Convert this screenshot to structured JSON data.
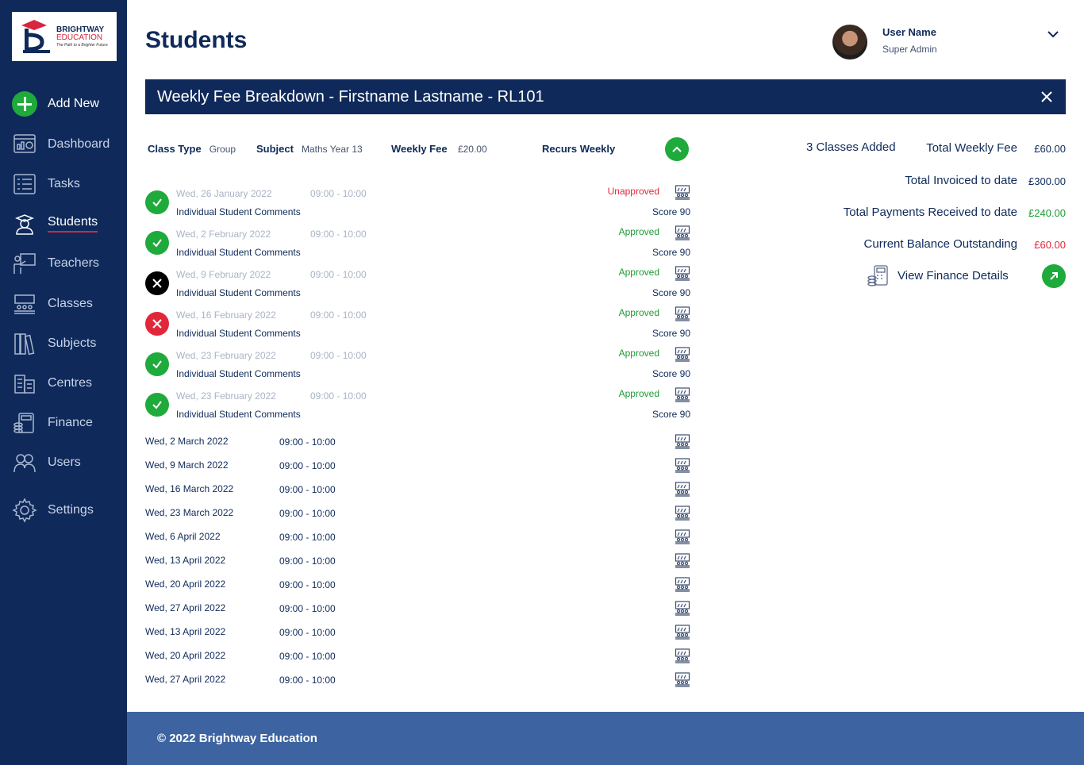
{
  "brand": {
    "line1": "BRIGHTWAY",
    "line2": "EDUCATION",
    "tagline": "The Path to a Brighter Future"
  },
  "sidebar": {
    "add_new": "Add New",
    "items": [
      {
        "label": "Dashboard",
        "icon": "dashboard-icon"
      },
      {
        "label": "Tasks",
        "icon": "tasks-icon"
      },
      {
        "label": "Students",
        "icon": "students-icon"
      },
      {
        "label": "Teachers",
        "icon": "teachers-icon"
      },
      {
        "label": "Classes",
        "icon": "classes-icon"
      },
      {
        "label": "Subjects",
        "icon": "subjects-icon"
      },
      {
        "label": "Centres",
        "icon": "centres-icon"
      },
      {
        "label": "Finance",
        "icon": "finance-icon"
      },
      {
        "label": "Users",
        "icon": "users-icon"
      },
      {
        "label": "Settings",
        "icon": "settings-icon"
      }
    ],
    "active": "Students"
  },
  "header": {
    "title": "Students",
    "user_name": "User Name",
    "user_role": "Super Admin"
  },
  "modal": {
    "title": "Weekly Fee Breakdown - Firstname Lastname - RL101"
  },
  "class_info": {
    "class_type_label": "Class Type",
    "class_type_value": "Group",
    "subject_label": "Subject",
    "subject_value": "Maths Year 13",
    "weekly_fee_label": "Weekly Fee",
    "weekly_fee_value": "£20.00",
    "recurs_label": "Recurs Weekly"
  },
  "past_sessions": [
    {
      "date": "Wed, 26 January 2022",
      "time": "09:00 - 10:00",
      "comment": "Individual Student Comments",
      "state": "ok",
      "status": "Unapproved",
      "status_type": "un",
      "score": "Score 90"
    },
    {
      "date": "Wed, 2 February 2022",
      "time": "09:00 - 10:00",
      "comment": "Individual Student Comments",
      "state": "ok",
      "status": "Approved",
      "status_type": "ap",
      "score": "Score 90"
    },
    {
      "date": "Wed, 9 February 2022",
      "time": "09:00 - 10:00",
      "comment": "Individual Student Comments",
      "state": "x",
      "status": "Approved",
      "status_type": "ap",
      "score": "Score 90"
    },
    {
      "date": "Wed, 16 February 2022",
      "time": "09:00 - 10:00",
      "comment": "Individual Student Comments",
      "state": "red",
      "status": "Approved",
      "status_type": "ap",
      "score": "Score 90"
    },
    {
      "date": "Wed, 23 February 2022",
      "time": "09:00 - 10:00",
      "comment": "Individual Student Comments",
      "state": "ok",
      "status": "Approved",
      "status_type": "ap",
      "score": "Score 90"
    },
    {
      "date": "Wed, 23 February 2022",
      "time": "09:00 - 10:00",
      "comment": "Individual Student Comments",
      "state": "ok",
      "status": "Approved",
      "status_type": "ap",
      "score": "Score 90"
    }
  ],
  "upcoming_sessions": [
    {
      "date": "Wed, 2 March 2022",
      "time": "09:00 - 10:00"
    },
    {
      "date": "Wed, 9 March 2022",
      "time": "09:00 - 10:00"
    },
    {
      "date": "Wed, 16 March 2022",
      "time": "09:00 - 10:00"
    },
    {
      "date": "Wed, 23 March 2022",
      "time": "09:00 - 10:00"
    },
    {
      "date": "Wed, 6 April 2022",
      "time": "09:00 - 10:00"
    },
    {
      "date": "Wed, 13 April 2022",
      "time": "09:00 - 10:00"
    },
    {
      "date": "Wed, 20 April 2022",
      "time": "09:00 - 10:00"
    },
    {
      "date": "Wed, 27 April 2022",
      "time": "09:00 - 10:00"
    },
    {
      "date": "Wed, 13 April 2022",
      "time": "09:00 - 10:00"
    },
    {
      "date": "Wed, 20 April 2022",
      "time": "09:00 - 10:00"
    },
    {
      "date": "Wed, 27 April 2022",
      "time": "09:00 - 10:00"
    }
  ],
  "summary": {
    "classes_added": "3 Classes Added",
    "total_weekly_fee_label": "Total Weekly Fee",
    "total_weekly_fee_value": "£60.00",
    "total_invoiced_label": "Total Invoiced to date",
    "total_invoiced_value": "£300.00",
    "total_payments_label": "Total Payments Received to date",
    "total_payments_value": "£240.00",
    "balance_label": "Current Balance Outstanding",
    "balance_value": "£60.00",
    "view_finance": "View  Finance Details"
  },
  "colors": {
    "navy": "#0f2a5a",
    "green": "#1faa3c",
    "red": "#e0283a",
    "footer": "#3d64a0"
  },
  "footer": {
    "copyright": "© 2022 Brightway Education"
  }
}
